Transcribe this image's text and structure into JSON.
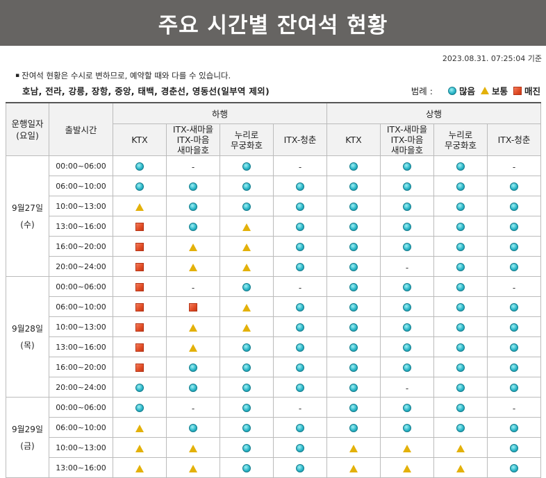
{
  "header": {
    "title": "주요 시간별 잔여석 현황"
  },
  "timestamp": "2023.08.31. 07:25:04 기준",
  "notice": "잔여석 현황은 수시로 변하므로, 예약할 때와 다를 수 있습니다.",
  "notice_bullet": "▪",
  "lines_note": "호남, 전라, 강릉, 장항, 중앙, 태백, 경춘선, 영동선(일부역 제외)",
  "legend": {
    "label": "범례 :",
    "items": [
      {
        "icon": "c",
        "label": "많음"
      },
      {
        "icon": "t",
        "label": "보통"
      },
      {
        "icon": "s",
        "label": "매진"
      }
    ]
  },
  "icon_colors": {
    "many": "#2cb7c9",
    "normal": "#e3b10a",
    "soldout": "#e04b24",
    "banner": "#666462"
  },
  "table": {
    "col_date": "운행일자\n(요일)",
    "col_time": "출발시간",
    "groups": [
      "하행",
      "상행"
    ],
    "trains": [
      "KTX",
      "ITX-새마을\nITX-마음\n새마을호",
      "누리로\n무궁화호",
      "ITX-청춘"
    ],
    "days": [
      {
        "date": "9월27일",
        "weekday": "(수)",
        "rows": [
          {
            "time": "00:00~06:00",
            "cells": [
              "c",
              "-",
              "c",
              "-",
              "c",
              "c",
              "c",
              "-"
            ]
          },
          {
            "time": "06:00~10:00",
            "cells": [
              "c",
              "c",
              "c",
              "c",
              "c",
              "c",
              "c",
              "c"
            ]
          },
          {
            "time": "10:00~13:00",
            "cells": [
              "t",
              "c",
              "c",
              "c",
              "c",
              "c",
              "c",
              "c"
            ]
          },
          {
            "time": "13:00~16:00",
            "cells": [
              "s",
              "c",
              "t",
              "c",
              "c",
              "c",
              "c",
              "c"
            ]
          },
          {
            "time": "16:00~20:00",
            "cells": [
              "s",
              "t",
              "t",
              "c",
              "c",
              "c",
              "c",
              "c"
            ]
          },
          {
            "time": "20:00~24:00",
            "cells": [
              "s",
              "t",
              "t",
              "c",
              "c",
              "-",
              "c",
              "c"
            ]
          }
        ]
      },
      {
        "date": "9월28일",
        "weekday": "(목)",
        "rows": [
          {
            "time": "00:00~06:00",
            "cells": [
              "s",
              "-",
              "c",
              "-",
              "c",
              "c",
              "c",
              "-"
            ]
          },
          {
            "time": "06:00~10:00",
            "cells": [
              "s",
              "s",
              "t",
              "c",
              "c",
              "c",
              "c",
              "c"
            ]
          },
          {
            "time": "10:00~13:00",
            "cells": [
              "s",
              "t",
              "t",
              "c",
              "c",
              "c",
              "c",
              "c"
            ]
          },
          {
            "time": "13:00~16:00",
            "cells": [
              "s",
              "t",
              "c",
              "c",
              "c",
              "c",
              "c",
              "c"
            ]
          },
          {
            "time": "16:00~20:00",
            "cells": [
              "s",
              "c",
              "c",
              "c",
              "c",
              "c",
              "c",
              "c"
            ]
          },
          {
            "time": "20:00~24:00",
            "cells": [
              "c",
              "c",
              "c",
              "c",
              "c",
              "-",
              "c",
              "c"
            ]
          }
        ]
      },
      {
        "date": "9월29일",
        "weekday": "(금)",
        "rows": [
          {
            "time": "00:00~06:00",
            "cells": [
              "c",
              "-",
              "c",
              "-",
              "c",
              "c",
              "c",
              "-"
            ]
          },
          {
            "time": "06:00~10:00",
            "cells": [
              "t",
              "c",
              "c",
              "c",
              "c",
              "c",
              "c",
              "c"
            ]
          },
          {
            "time": "10:00~13:00",
            "cells": [
              "t",
              "t",
              "c",
              "c",
              "t",
              "t",
              "t",
              "c"
            ]
          },
          {
            "time": "13:00~16:00",
            "cells": [
              "t",
              "t",
              "c",
              "c",
              "t",
              "t",
              "t",
              "c"
            ]
          }
        ]
      }
    ]
  }
}
